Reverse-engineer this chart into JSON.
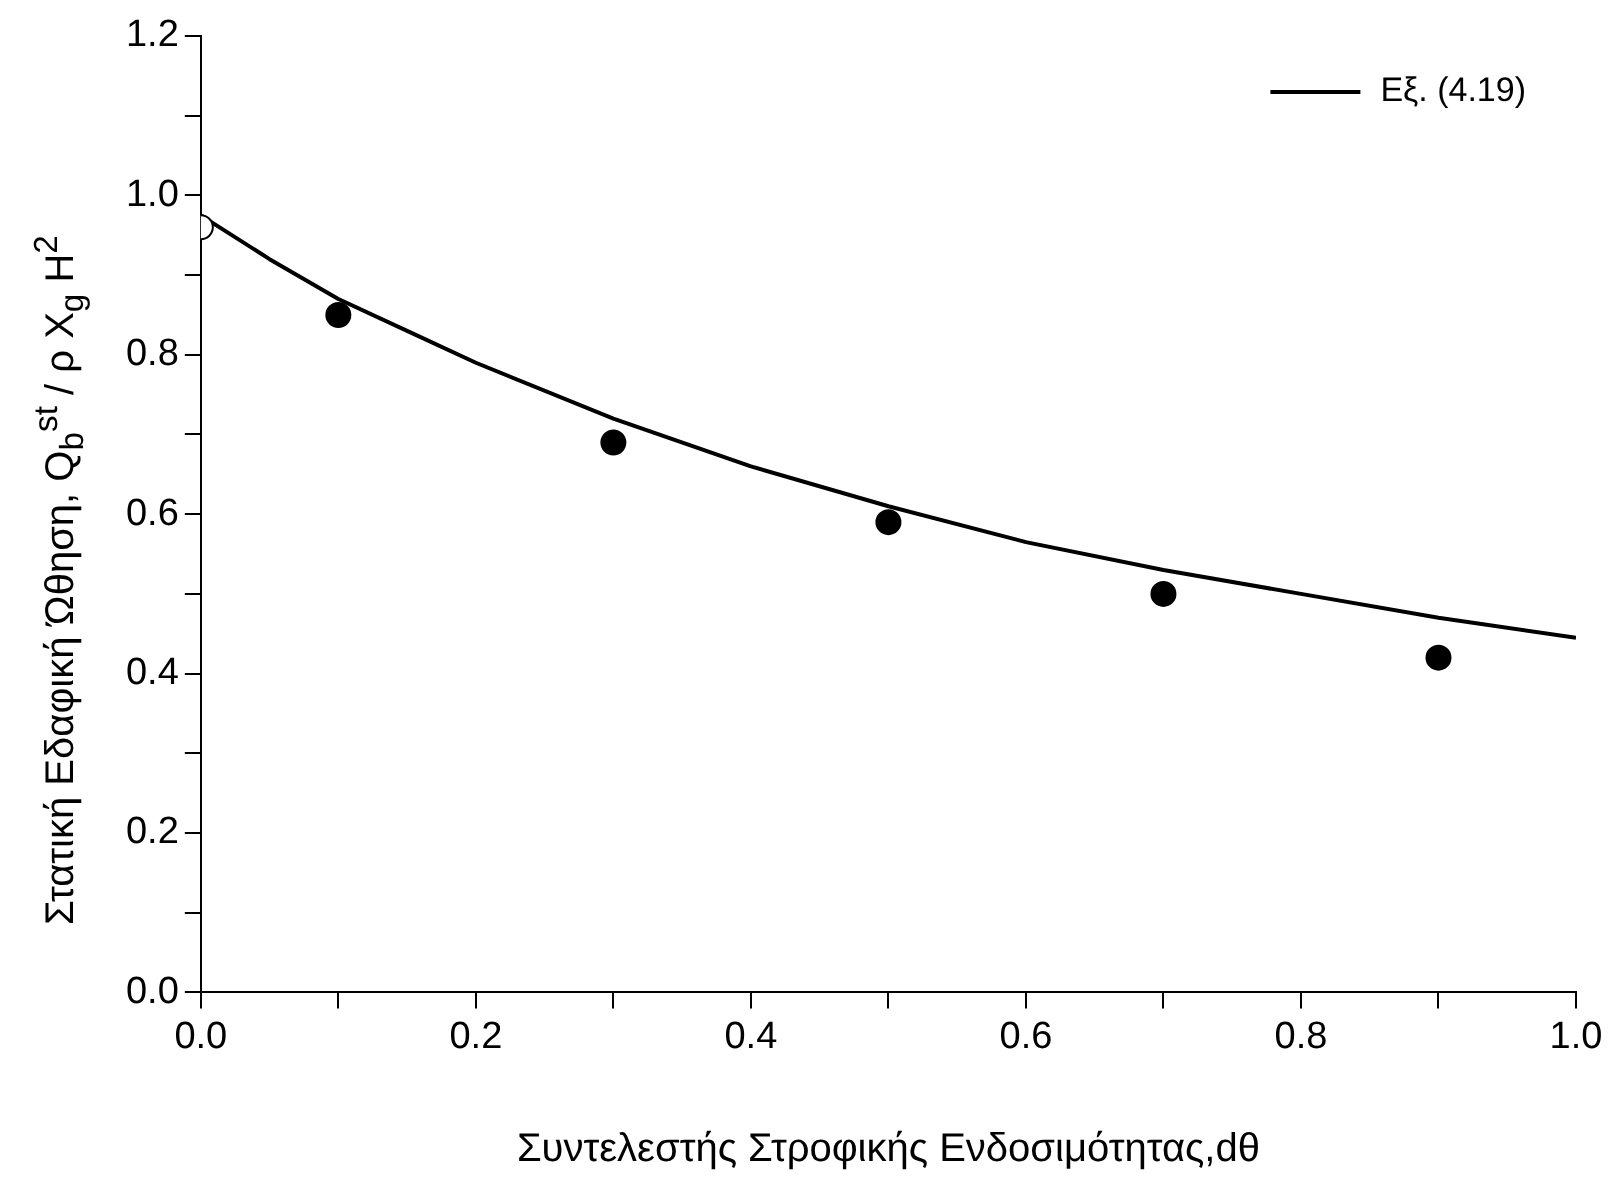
{
  "chart_data": {
    "type": "line",
    "xlabel": "Συντελεστής Στροφικής Ενδοσιμότητας,dθ",
    "ylabel": "Στατική Εδαφική Ώθηση, Q$_{b}$$^{st}$ / ρ X$_{g}$ H$^{2}$",
    "xlim": [
      0,
      1
    ],
    "ylim": [
      0,
      1.2
    ],
    "xticks": [
      {
        "value": 0,
        "label": "0.0"
      },
      {
        "value": 0.1,
        "label": null
      },
      {
        "value": 0.2,
        "label": "0.2"
      },
      {
        "value": 0.3,
        "label": null
      },
      {
        "value": 0.4,
        "label": "0.4"
      },
      {
        "value": 0.5,
        "label": null
      },
      {
        "value": 0.6,
        "label": "0.6"
      },
      {
        "value": 0.7,
        "label": null
      },
      {
        "value": 0.8,
        "label": "0.8"
      },
      {
        "value": 0.9,
        "label": null
      },
      {
        "value": 1,
        "label": "1.0"
      }
    ],
    "yticks": [
      {
        "value": 0,
        "label": "0.0"
      },
      {
        "value": 0.1,
        "label": null
      },
      {
        "value": 0.2,
        "label": "0.2"
      },
      {
        "value": 0.3,
        "label": null
      },
      {
        "value": 0.4,
        "label": "0.4"
      },
      {
        "value": 0.5,
        "label": null
      },
      {
        "value": 0.6,
        "label": "0.6"
      },
      {
        "value": 0.7,
        "label": null
      },
      {
        "value": 0.8,
        "label": "0.8"
      },
      {
        "value": 0.9,
        "label": null
      },
      {
        "value": 1,
        "label": "1.0"
      },
      {
        "value": 1.1,
        "label": null
      },
      {
        "value": 1.2,
        "label": "1.2"
      }
    ],
    "grid": false,
    "legend": "top right",
    "series": [
      {
        "name": "Εξ. (4.19)",
        "type": "line",
        "color": "#000000",
        "marker": "none",
        "line_style": "solid",
        "x": [
          0,
          0.05,
          0.1,
          0.15,
          0.2,
          0.3,
          0.4,
          0.5,
          0.6,
          0.7,
          0.8,
          0.9,
          1.0
        ],
        "values": [
          0.975,
          0.92,
          0.87,
          0.83,
          0.79,
          0.72,
          0.66,
          0.61,
          0.565,
          0.53,
          0.5,
          0.47,
          0.445
        ]
      },
      {
        "type": "scatter",
        "color": "#000000",
        "marker": "circle",
        "x": [
          0.1,
          0.3,
          0.5,
          0.7,
          0.9
        ],
        "values": [
          0.85,
          0.69,
          0.59,
          0.5,
          0.42
        ]
      },
      {
        "type": "scatter",
        "color": "#000000",
        "marker": "circle",
        "x": [
          0
        ],
        "values": [
          0.96
        ]
      }
    ]
  }
}
